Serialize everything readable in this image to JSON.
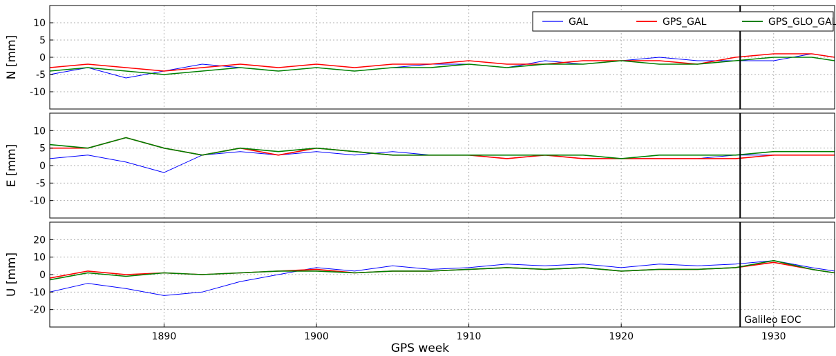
{
  "chart_data": {
    "type": "line",
    "xlabel": "GPS week",
    "xlim": [
      1882.5,
      1934
    ],
    "xticks": [
      1890,
      1900,
      1910,
      1920,
      1930
    ],
    "grid": true,
    "legend": {
      "placement": "top-right",
      "entries": [
        {
          "name": "GAL",
          "color": "#0000ff"
        },
        {
          "name": "GPS_GAL",
          "color": "#ff0000"
        },
        {
          "name": "GPS_GLO_GAL",
          "color": "#008000"
        }
      ]
    },
    "vline": {
      "x": 1927.8,
      "label": "Galileo EOC"
    },
    "panels": [
      {
        "name": "north",
        "ylabel": "N [mm]",
        "ylim": [
          -15,
          15
        ],
        "yticks": [
          10,
          5,
          0,
          -5,
          -10
        ],
        "series": [
          {
            "name": "GAL",
            "color": "#0000ff",
            "x": [
              1882.5,
              1885,
              1887.5,
              1890,
              1892.5,
              1895,
              1897.5,
              1900,
              1902.5,
              1905,
              1907.5,
              1910,
              1912.5,
              1915,
              1917.5,
              1920,
              1922.5,
              1925,
              1927.5,
              1930,
              1932.5,
              1934
            ],
            "y": [
              -5,
              -3,
              -6,
              -4,
              -2,
              -3,
              -4,
              -3,
              -4,
              -3,
              -2,
              -2,
              -3,
              -1,
              -2,
              -1,
              0,
              -1,
              -1,
              -1,
              1,
              0
            ]
          },
          {
            "name": "GPS_GAL",
            "color": "#ff0000",
            "x": [
              1882.5,
              1885,
              1887.5,
              1890,
              1892.5,
              1895,
              1897.5,
              1900,
              1902.5,
              1905,
              1907.5,
              1910,
              1912.5,
              1915,
              1917.5,
              1920,
              1922.5,
              1925,
              1927.5,
              1930,
              1932.5,
              1934
            ],
            "y": [
              -3,
              -2,
              -3,
              -4,
              -3,
              -2,
              -3,
              -2,
              -3,
              -2,
              -2,
              -1,
              -2,
              -2,
              -1,
              -1,
              -1,
              -2,
              0,
              1,
              1,
              0
            ]
          },
          {
            "name": "GPS_GLO_GAL",
            "color": "#008000",
            "x": [
              1882.5,
              1885,
              1887.5,
              1890,
              1892.5,
              1895,
              1897.5,
              1900,
              1902.5,
              1905,
              1907.5,
              1910,
              1912.5,
              1915,
              1917.5,
              1920,
              1922.5,
              1925,
              1927.5,
              1930,
              1932.5,
              1934
            ],
            "y": [
              -4,
              -3,
              -4,
              -5,
              -4,
              -3,
              -4,
              -3,
              -4,
              -3,
              -3,
              -2,
              -3,
              -2,
              -2,
              -1,
              -2,
              -2,
              -1,
              0,
              0,
              -1
            ]
          }
        ]
      },
      {
        "name": "east",
        "ylabel": "E [mm]",
        "ylim": [
          -15,
          15
        ],
        "yticks": [
          10,
          5,
          0,
          -5,
          -10
        ],
        "series": [
          {
            "name": "GAL",
            "color": "#0000ff",
            "x": [
              1882.5,
              1885,
              1887.5,
              1890,
              1892.5,
              1895,
              1897.5,
              1900,
              1902.5,
              1905,
              1907.5,
              1910,
              1912.5,
              1915,
              1917.5,
              1920,
              1922.5,
              1925,
              1927.5,
              1930,
              1932.5,
              1934
            ],
            "y": [
              2,
              3,
              1,
              -2,
              3,
              4,
              3,
              4,
              3,
              4,
              3,
              3,
              2,
              3,
              2,
              2,
              2,
              2,
              3,
              3,
              3,
              3
            ]
          },
          {
            "name": "GPS_GAL",
            "color": "#ff0000",
            "x": [
              1882.5,
              1885,
              1887.5,
              1890,
              1892.5,
              1895,
              1897.5,
              1900,
              1902.5,
              1905,
              1907.5,
              1910,
              1912.5,
              1915,
              1917.5,
              1920,
              1922.5,
              1925,
              1927.5,
              1930,
              1932.5,
              1934
            ],
            "y": [
              5,
              5,
              8,
              5,
              3,
              5,
              3,
              5,
              4,
              3,
              3,
              3,
              2,
              3,
              2,
              2,
              2,
              2,
              2,
              3,
              3,
              3
            ]
          },
          {
            "name": "GPS_GLO_GAL",
            "color": "#008000",
            "x": [
              1882.5,
              1885,
              1887.5,
              1890,
              1892.5,
              1895,
              1897.5,
              1900,
              1902.5,
              1905,
              1907.5,
              1910,
              1912.5,
              1915,
              1917.5,
              1920,
              1922.5,
              1925,
              1927.5,
              1930,
              1932.5,
              1934
            ],
            "y": [
              6,
              5,
              8,
              5,
              3,
              5,
              4,
              5,
              4,
              3,
              3,
              3,
              3,
              3,
              3,
              2,
              3,
              3,
              3,
              4,
              4,
              4
            ]
          }
        ]
      },
      {
        "name": "up",
        "ylabel": "U [mm]",
        "ylim": [
          -30,
          30
        ],
        "yticks": [
          20,
          10,
          0,
          -10,
          -20
        ],
        "series": [
          {
            "name": "GAL",
            "color": "#0000ff",
            "x": [
              1882.5,
              1885,
              1887.5,
              1890,
              1892.5,
              1895,
              1897.5,
              1900,
              1902.5,
              1905,
              1907.5,
              1910,
              1912.5,
              1915,
              1917.5,
              1920,
              1922.5,
              1925,
              1927.5,
              1930,
              1932.5,
              1934
            ],
            "y": [
              -10,
              -5,
              -8,
              -12,
              -10,
              -4,
              0,
              4,
              2,
              5,
              3,
              4,
              6,
              5,
              6,
              4,
              6,
              5,
              6,
              8,
              4,
              2
            ]
          },
          {
            "name": "GPS_GAL",
            "color": "#ff0000",
            "x": [
              1882.5,
              1885,
              1887.5,
              1890,
              1892.5,
              1895,
              1897.5,
              1900,
              1902.5,
              1905,
              1907.5,
              1910,
              1912.5,
              1915,
              1917.5,
              1920,
              1922.5,
              1925,
              1927.5,
              1930,
              1932.5,
              1934
            ],
            "y": [
              -2,
              2,
              0,
              1,
              0,
              1,
              2,
              3,
              1,
              2,
              2,
              3,
              4,
              3,
              4,
              2,
              3,
              3,
              4,
              7,
              3,
              1
            ]
          },
          {
            "name": "GPS_GLO_GAL",
            "color": "#008000",
            "x": [
              1882.5,
              1885,
              1887.5,
              1890,
              1892.5,
              1895,
              1897.5,
              1900,
              1902.5,
              1905,
              1907.5,
              1910,
              1912.5,
              1915,
              1917.5,
              1920,
              1922.5,
              1925,
              1927.5,
              1930,
              1932.5,
              1934
            ],
            "y": [
              -3,
              1,
              -1,
              1,
              0,
              1,
              2,
              2,
              1,
              2,
              2,
              3,
              4,
              3,
              4,
              2,
              3,
              3,
              4,
              8,
              3,
              1
            ]
          }
        ]
      }
    ]
  }
}
